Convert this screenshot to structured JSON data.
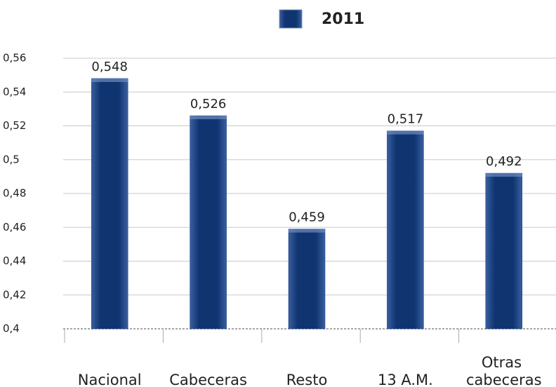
{
  "chart_data": {
    "type": "bar",
    "categories": [
      "Nacional",
      "Cabeceras",
      "Resto",
      "13 A.M.",
      "Otras cabeceras"
    ],
    "series": [
      {
        "name": "2011",
        "color": "#133d7e",
        "values": [
          0.548,
          0.526,
          0.459,
          0.517,
          0.492
        ],
        "value_labels": [
          "0,548",
          "0,526",
          "0,459",
          "0,517",
          "0,492"
        ]
      }
    ],
    "ylim": [
      0.4,
      0.56
    ],
    "yticks": [
      {
        "value": 0.4,
        "label": "0,4"
      },
      {
        "value": 0.42,
        "label": "0,42"
      },
      {
        "value": 0.44,
        "label": "0,44"
      },
      {
        "value": 0.46,
        "label": "0,46"
      },
      {
        "value": 0.48,
        "label": "0,48"
      },
      {
        "value": 0.5,
        "label": "0,5"
      },
      {
        "value": 0.52,
        "label": "0,52"
      },
      {
        "value": 0.54,
        "label": "0,54"
      },
      {
        "value": 0.56,
        "label": "0,56"
      }
    ],
    "grid": true,
    "legend": "top"
  }
}
